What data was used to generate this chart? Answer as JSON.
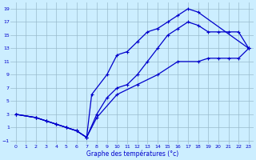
{
  "xlabel": "Graphe des températures (°c)",
  "xlim": [
    -0.5,
    23.5
  ],
  "ylim": [
    -1.5,
    20
  ],
  "xticks": [
    0,
    1,
    2,
    3,
    4,
    5,
    6,
    7,
    8,
    9,
    10,
    11,
    12,
    13,
    14,
    15,
    16,
    17,
    18,
    19,
    20,
    21,
    22,
    23
  ],
  "yticks": [
    -1,
    1,
    3,
    5,
    7,
    9,
    11,
    13,
    15,
    17,
    19
  ],
  "bg_color": "#cceeff",
  "line_color": "#0000cc",
  "grid_color": "#99bbcc",
  "line1_x": [
    0,
    2,
    3,
    4,
    5,
    6,
    7,
    7.5,
    9,
    10,
    11,
    12,
    13,
    14,
    15,
    16,
    17,
    18,
    23
  ],
  "line1_y": [
    3,
    2.5,
    2,
    1.5,
    1,
    0.5,
    -0.5,
    6,
    9,
    12,
    12.5,
    14,
    15.5,
    16,
    17,
    18,
    19,
    18.5,
    13
  ],
  "line2_x": [
    0,
    2,
    3,
    4,
    5,
    6,
    7,
    8,
    9,
    10,
    11,
    12,
    13,
    14,
    15,
    16,
    17,
    18,
    19,
    20,
    21,
    22,
    23
  ],
  "line2_y": [
    3,
    2.5,
    2,
    1.5,
    1,
    0.5,
    -0.5,
    3,
    5.5,
    7,
    7.5,
    9,
    11,
    13,
    15,
    16,
    17,
    16.5,
    15.5,
    15.5,
    15.5,
    15.5,
    13
  ],
  "line3_x": [
    0,
    2,
    3,
    4,
    5,
    6,
    7,
    8,
    10,
    12,
    14,
    16,
    18,
    19,
    20,
    21,
    22,
    23
  ],
  "line3_y": [
    3,
    2.5,
    2,
    1.5,
    1,
    0.5,
    -0.5,
    2.5,
    6,
    7.5,
    9,
    11,
    11,
    11.5,
    11.5,
    11.5,
    11.5,
    13
  ]
}
